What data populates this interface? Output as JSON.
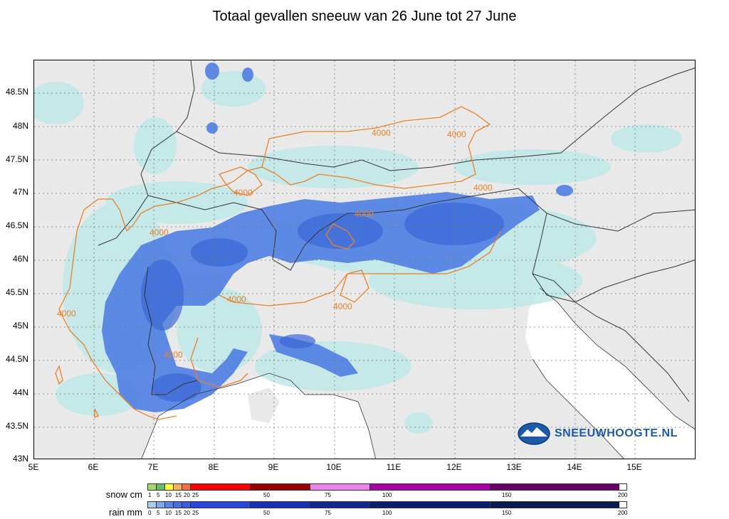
{
  "title": "Totaal gevallen sneeuw van 26 June tot 27 June",
  "y_axis_ticks": [
    "48.5N",
    "48N",
    "47.5N",
    "47N",
    "46.5N",
    "46N",
    "45.5N",
    "45N",
    "44.5N",
    "44N",
    "43.5N",
    "43N"
  ],
  "x_axis_ticks": [
    "5E",
    "6E",
    "7E",
    "8E",
    "9E",
    "10E",
    "11E",
    "12E",
    "13E",
    "14E",
    "15E"
  ],
  "contour_label": "4000",
  "legend": {
    "snow_label": "snow cm",
    "rain_label": "rain mm",
    "snow_ticks": [
      "1",
      "5",
      "10",
      "15",
      "20",
      "25",
      "50",
      "75",
      "100",
      "150",
      "200"
    ],
    "rain_ticks": [
      "0",
      "5",
      "10",
      "15",
      "20",
      "25",
      "50",
      "75",
      "100",
      "150",
      "200"
    ],
    "snow_colors": [
      "#a6d96a",
      "#66bd63",
      "#ffff33",
      "#fdae61",
      "#f46d43",
      "#ff0000",
      "#990000",
      "#ee82ee",
      "#aa00aa",
      "#6a006a"
    ],
    "rain_colors": [
      "#aecde9",
      "#7fa8e8",
      "#5b86e6",
      "#4a6fe0",
      "#3b5be0",
      "#2a46d8",
      "#1a2fb8",
      "#13288f",
      "#0c1e6e",
      "#091a52"
    ]
  },
  "logo_text": "SNEEUWHOOGTE.NL",
  "colors": {
    "land": "#e9e9e9",
    "sea": "#ffffff",
    "light_precip": "#bfe8e8",
    "snow_blue": "#4f7ee3",
    "contour": "#e8822a",
    "border": "#333333"
  }
}
